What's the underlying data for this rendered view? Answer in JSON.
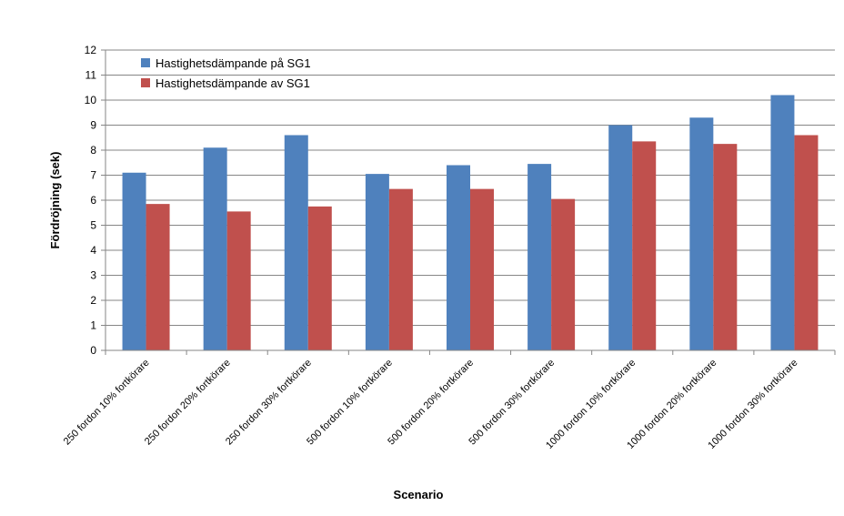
{
  "chart_data": {
    "type": "bar",
    "title": "",
    "xlabel": "Scenario",
    "ylabel": "Fördröjning (sek)",
    "ylim": [
      0,
      12
    ],
    "yticks": [
      0,
      1,
      2,
      3,
      4,
      5,
      6,
      7,
      8,
      9,
      10,
      11,
      12
    ],
    "grid": true,
    "legend_position": "top-left",
    "categories": [
      "250 fordon 10% fortkörare",
      "250 fordon 20% fortkörare",
      "250 fordon 30% fortkörare",
      "500 fordon 10% fortkörare",
      "500 fordon 20% fortkörare",
      "500 fordon 30% fortkörare",
      "1000 fordon 10% fortkörare",
      "1000 fordon 20% fortkörare",
      "1000 fordon 30% fortkörare"
    ],
    "series": [
      {
        "name": "Hastighetsdämpande på SG1",
        "color": "#4F81BD",
        "values": [
          7.1,
          8.1,
          8.6,
          7.05,
          7.4,
          7.45,
          9.0,
          9.3,
          10.2
        ]
      },
      {
        "name": "Hastighetsdämpande av SG1",
        "color": "#C0504D",
        "values": [
          5.85,
          5.55,
          5.75,
          6.45,
          6.45,
          6.05,
          8.35,
          8.25,
          8.6
        ]
      }
    ]
  }
}
